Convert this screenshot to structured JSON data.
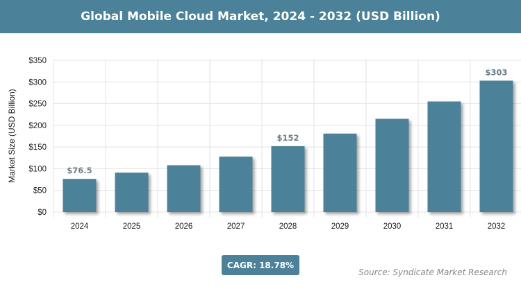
{
  "chart_data": {
    "type": "bar",
    "title": "Global Mobile Cloud Market, 2024 - 2032 (USD Billion)",
    "xlabel": "",
    "ylabel": "Market Size (USD Billion)",
    "categories": [
      "2024",
      "2025",
      "2026",
      "2027",
      "2028",
      "2029",
      "2030",
      "2031",
      "2032"
    ],
    "values": [
      76.5,
      91,
      108,
      128,
      152,
      181,
      215,
      255,
      303
    ],
    "data_labels": {
      "0": "$76.5",
      "4": "$152",
      "8": "$303"
    },
    "ylim": [
      0,
      350
    ],
    "yticks": [
      0,
      50,
      100,
      150,
      200,
      250,
      300,
      350
    ],
    "ytick_labels": [
      "$0",
      "$50",
      "$100",
      "$150",
      "$200",
      "$250",
      "$300",
      "$350"
    ],
    "grid": true,
    "bar_color": "#4b8199"
  },
  "cagr": "CAGR: 18.78%",
  "source": "Source: Syndicate Market Research"
}
